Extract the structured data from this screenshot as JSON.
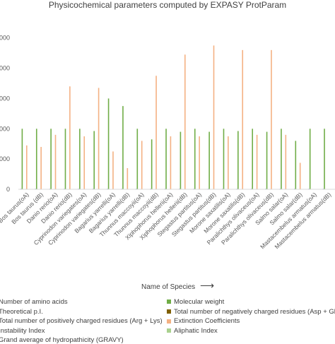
{
  "chart_data": {
    "type": "bar",
    "title": "Physicochemical parameters computed by EXPASY ProtParam",
    "xlabel": "Name of Species",
    "arrow": "⟶",
    "ytick_labels": [
      "000",
      "000",
      "000",
      "000",
      "000",
      "0"
    ],
    "ytick_values": [
      100000,
      80000,
      60000,
      40000,
      20000,
      0
    ],
    "ylim": [
      0,
      112000
    ],
    "categories": [
      "Bos taurus(oA)",
      "Bos taurus (dB)",
      "Danio rerio(oA)",
      "Danio rerio(dB)",
      "Cyprinodon variegates(oA)",
      "Cyprinodon variegates(dB)",
      "Bagarius yarrelli(oA)",
      "Bagarius yarrelli(dB)",
      "Thunnus maccoyii(oA)",
      "Thunnus maccoyii(dB)",
      "Xiphophorus hellerii(oA)",
      "Xiphophorus hellerii(dB)",
      "Stegastus partitus(oA)",
      "Stegastus partitus(dB)",
      "Morone saxatilis(oA)",
      "Morone saxatilis(dB)",
      "Paralichthys olivaceus(oA)",
      "Paralichthys olivaceus(dB)",
      "Salmo salar(oA)",
      "Salmo salar(dB)",
      "Mastacembelus armatus(oA)",
      "Mastacembelus armatus(dB)"
    ],
    "series": [
      {
        "name": "Number of amino acids",
        "color": "#4472c4",
        "values": [
          340,
          341,
          340,
          342,
          341,
          343,
          340,
          341,
          340,
          342,
          341,
          343,
          340,
          342,
          341,
          343,
          340,
          342,
          341,
          343,
          340,
          342
        ]
      },
      {
        "name": "Molecular weight",
        "color": "#70ad47",
        "values": [
          40000,
          40000,
          40000,
          40000,
          40000,
          38500,
          60000,
          55000,
          40000,
          33000,
          40000,
          38000,
          40000,
          38000,
          40000,
          38500,
          40000,
          38000,
          40000,
          32000,
          40000,
          40000
        ]
      },
      {
        "name": "Theoretical p.I.",
        "color": "#a5a5a5",
        "values": [
          6,
          6,
          6,
          6,
          6,
          6,
          6,
          6,
          6,
          6,
          6,
          6,
          6,
          6,
          6,
          6,
          6,
          6,
          6,
          6,
          6,
          6
        ]
      },
      {
        "name": "Total number of negatively charged residues (Asp + Glu)",
        "color": "#806000",
        "values": [
          50,
          50,
          50,
          50,
          50,
          50,
          50,
          50,
          50,
          50,
          50,
          50,
          50,
          50,
          50,
          50,
          50,
          50,
          50,
          50,
          50,
          50
        ]
      },
      {
        "name": "Total number of positively charged residues (Arg + Lys)",
        "color": "#ed7d31",
        "values": [
          45,
          45,
          45,
          45,
          45,
          45,
          45,
          45,
          45,
          45,
          45,
          45,
          45,
          45,
          45,
          45,
          45,
          45,
          45,
          45,
          45,
          45
        ]
      },
      {
        "name": "Extinction Coefficients",
        "color": "#f4b183",
        "values": [
          29000,
          28000,
          36000,
          68000,
          35000,
          67000,
          25000,
          14000,
          32000,
          75000,
          35000,
          89000,
          35000,
          95000,
          35000,
          92000,
          36000,
          92000,
          36000,
          17500,
          0,
          0
        ]
      },
      {
        "name": "Instability Index",
        "color": "#5b9bd5",
        "values": [
          45,
          45,
          45,
          45,
          45,
          45,
          45,
          45,
          45,
          45,
          45,
          45,
          45,
          45,
          45,
          45,
          45,
          45,
          45,
          45,
          45,
          45
        ]
      },
      {
        "name": "Aliphatic Index",
        "color": "#a9d18e",
        "values": [
          100,
          100,
          100,
          100,
          100,
          100,
          100,
          100,
          100,
          100,
          100,
          100,
          100,
          100,
          100,
          100,
          100,
          100,
          100,
          100,
          100,
          100
        ]
      },
      {
        "name": "Grand average of hydropathicity (GRAVY)",
        "color": "#c5e0b4",
        "values": [
          0.3,
          0.3,
          0.3,
          0.3,
          0.3,
          0.3,
          0.3,
          0.3,
          0.3,
          0.3,
          0.3,
          0.3,
          0.3,
          0.3,
          0.3,
          0.3,
          0.3,
          0.3,
          0.3,
          0.3,
          0.3,
          0.3
        ]
      }
    ],
    "legend_entries": [
      "Number of amino acids",
      "Molecular weight",
      "Theoretical p.I.",
      "Total number of negatively charged residues (Asp + Glu)",
      "Total number of positively charged residues (Arg + Lys)",
      "Extinction Coefficients",
      "Instability Index",
      "Aliphatic Index",
      "Grand average of hydropathicity (GRAVY)"
    ],
    "grid": false,
    "legend_position": "bottom"
  }
}
